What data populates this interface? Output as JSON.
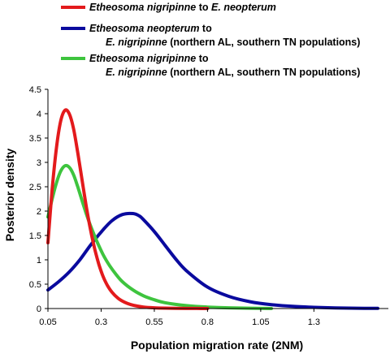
{
  "chart_data": {
    "type": "line",
    "xlabel": "Population migration rate (2NM)",
    "ylabel": "Posterior density",
    "xlim": [
      0.05,
      1.65
    ],
    "ylim": [
      0,
      4.5
    ],
    "xticks": [
      "0.05",
      "0.3",
      "0.55",
      "0.8",
      "1.05",
      "1.3"
    ],
    "yticks": [
      "0",
      "0.5",
      "1",
      "1.5",
      "2",
      "2.5",
      "3",
      "3.5",
      "4",
      "4.5"
    ],
    "grid": false,
    "legend_position": "top",
    "series": [
      {
        "legend": {
          "species": "Etheosoma nigripinne",
          "connector": "to",
          "target_species": "E. neopterum",
          "target_note": ""
        },
        "color": "#e31a1c",
        "x": [
          0.05,
          0.07,
          0.09,
          0.11,
          0.13,
          0.15,
          0.17,
          0.19,
          0.21,
          0.23,
          0.25,
          0.27,
          0.29,
          0.31,
          0.33,
          0.35,
          0.38,
          0.41,
          0.44,
          0.47,
          0.5,
          0.55,
          0.6,
          0.65,
          0.7,
          0.75,
          0.8
        ],
        "y": [
          1.35,
          2.45,
          3.3,
          3.85,
          4.07,
          4.0,
          3.7,
          3.2,
          2.65,
          2.1,
          1.62,
          1.22,
          0.9,
          0.65,
          0.47,
          0.34,
          0.21,
          0.13,
          0.08,
          0.05,
          0.03,
          0.015,
          0.008,
          0.004,
          0.002,
          0.001,
          0.0
        ]
      },
      {
        "legend": {
          "species": "Etheosoma neopterum",
          "connector": "to",
          "target_species": "E. nigripinne",
          "target_note": "(northern AL, southern TN populations)"
        },
        "color": "#0a0a9e",
        "x": [
          0.05,
          0.1,
          0.15,
          0.2,
          0.25,
          0.3,
          0.35,
          0.4,
          0.45,
          0.48,
          0.5,
          0.55,
          0.6,
          0.65,
          0.7,
          0.8,
          0.9,
          1.0,
          1.1,
          1.2,
          1.3,
          1.4,
          1.5,
          1.6
        ],
        "y": [
          0.38,
          0.55,
          0.75,
          1.0,
          1.3,
          1.57,
          1.8,
          1.93,
          1.95,
          1.9,
          1.82,
          1.58,
          1.3,
          1.02,
          0.78,
          0.44,
          0.25,
          0.14,
          0.08,
          0.045,
          0.025,
          0.014,
          0.007,
          0.003
        ]
      },
      {
        "legend": {
          "species": "Etheosoma nigripinne",
          "connector": "to",
          "target_species": "E. nigripinne",
          "target_note": "(northern AL, southern TN populations)"
        },
        "color": "#3ec43e",
        "x": [
          0.05,
          0.07,
          0.09,
          0.11,
          0.13,
          0.15,
          0.17,
          0.19,
          0.21,
          0.23,
          0.25,
          0.28,
          0.31,
          0.34,
          0.37,
          0.4,
          0.45,
          0.5,
          0.55,
          0.6,
          0.7,
          0.8,
          0.9,
          1.0,
          1.1
        ],
        "y": [
          1.88,
          2.25,
          2.58,
          2.82,
          2.93,
          2.9,
          2.75,
          2.5,
          2.22,
          1.95,
          1.7,
          1.38,
          1.1,
          0.88,
          0.7,
          0.55,
          0.38,
          0.26,
          0.18,
          0.12,
          0.06,
          0.03,
          0.015,
          0.007,
          0.0
        ]
      }
    ]
  }
}
